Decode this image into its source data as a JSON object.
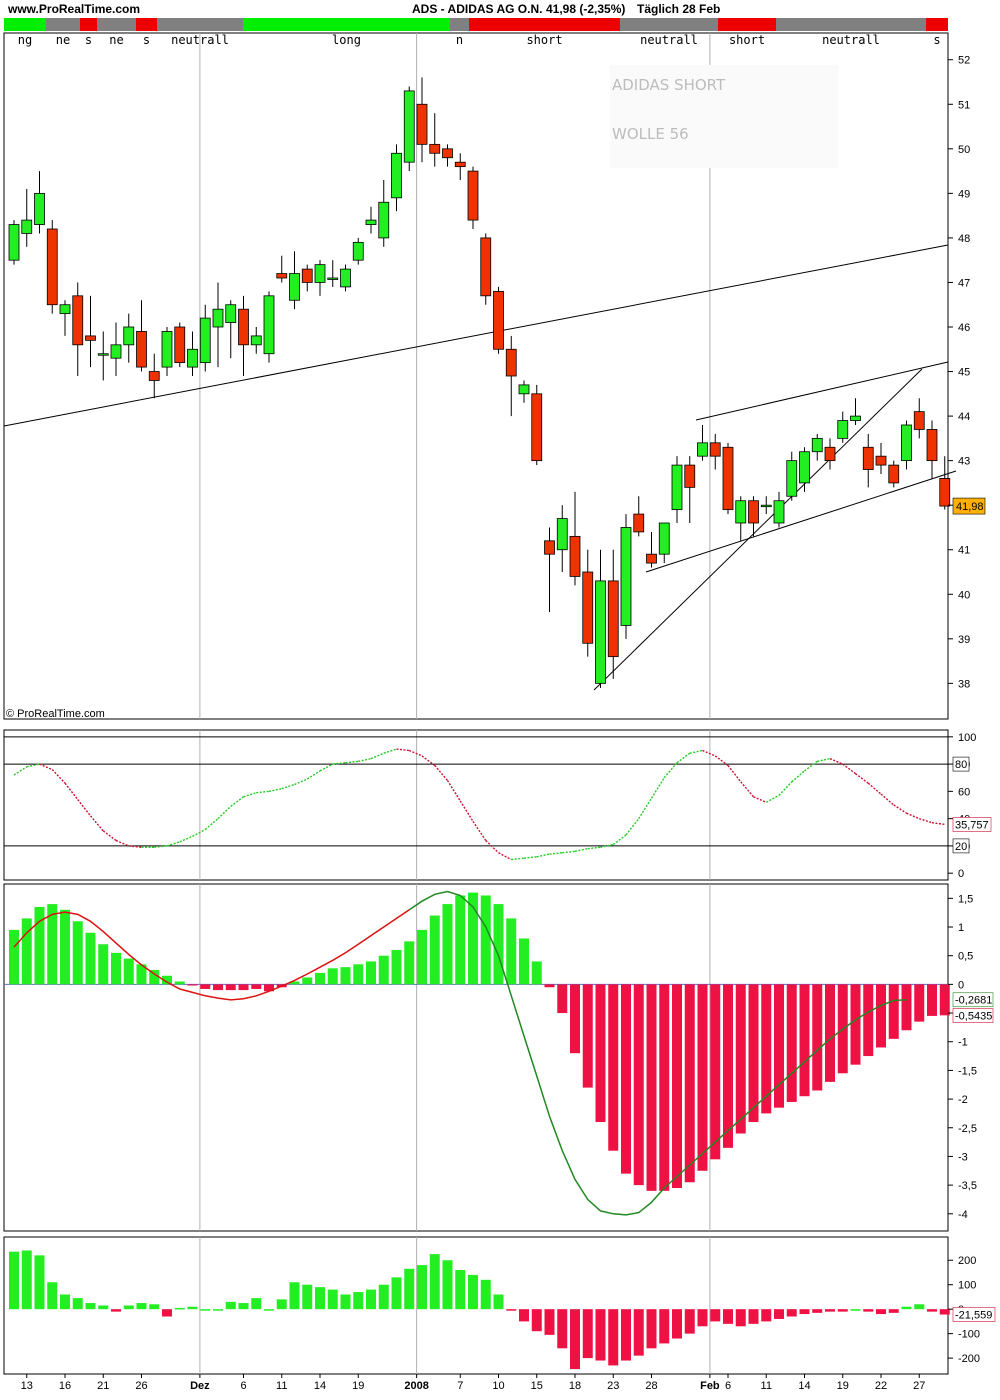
{
  "header": {
    "site": "www.ProRealTime.com",
    "title": "ADS - ADIDAS AG O.N.",
    "quote": "41,98 (-2,35%)",
    "period": "Täglich  28 Feb"
  },
  "signal_segments": [
    {
      "label": "ng",
      "color": "#00ee00"
    },
    {
      "label": "ne",
      "color": "#808080"
    },
    {
      "label": "s",
      "color": "#ee0000"
    },
    {
      "label": "ne",
      "color": "#808080"
    },
    {
      "label": "s",
      "color": "#ee0000"
    },
    {
      "label": "neutrall",
      "color": "#808080"
    },
    {
      "label": "long",
      "color": "#00ee00"
    },
    {
      "label": "n",
      "color": "#808080"
    },
    {
      "label": "short",
      "color": "#ee0000"
    },
    {
      "label": "neutrall",
      "color": "#808080"
    },
    {
      "label": "short",
      "color": "#ee0000"
    },
    {
      "label": "neutrall",
      "color": "#808080"
    },
    {
      "label": "s",
      "color": "#ee0000"
    }
  ],
  "copyright": "© ProRealTime.com",
  "annotations": [
    "ADIDAS SHORT",
    "WOLLE 56"
  ],
  "colors": {
    "up": "#22ee22",
    "down": "#ee3300",
    "hist_neg": "#ee1144",
    "price_tag": "#ffb000"
  },
  "chart_data": [
    {
      "type": "candlestick",
      "y_ticks": [
        "52",
        "51",
        "50",
        "49",
        "48",
        "47",
        "46",
        "45",
        "44",
        "43",
        "42",
        "41",
        "40",
        "39",
        "38"
      ],
      "ylim": [
        37.2,
        52.6
      ],
      "last_price_label": "41,98",
      "x_tick_labels": [
        "13",
        "16",
        "21",
        "26",
        "Dez",
        "6",
        "11",
        "14",
        "19",
        "2008",
        "7",
        "10",
        "15",
        "18",
        "23",
        "28",
        "Feb",
        "6",
        "11",
        "14",
        "19",
        "22",
        "27"
      ],
      "candles": [
        {
          "o": 47.5,
          "h": 48.4,
          "l": 47.4,
          "c": 48.3
        },
        {
          "o": 48.1,
          "h": 49.1,
          "l": 47.8,
          "c": 48.4
        },
        {
          "o": 48.3,
          "h": 49.5,
          "l": 48.1,
          "c": 49.0
        },
        {
          "o": 48.2,
          "h": 48.4,
          "l": 46.3,
          "c": 46.5
        },
        {
          "o": 46.3,
          "h": 46.6,
          "l": 45.8,
          "c": 46.5
        },
        {
          "o": 46.7,
          "h": 47.0,
          "l": 44.9,
          "c": 45.6
        },
        {
          "o": 45.8,
          "h": 46.7,
          "l": 45.1,
          "c": 45.7
        },
        {
          "o": 45.4,
          "h": 45.9,
          "l": 44.8,
          "c": 45.4
        },
        {
          "o": 45.3,
          "h": 46.1,
          "l": 44.9,
          "c": 45.6
        },
        {
          "o": 45.6,
          "h": 46.3,
          "l": 45.2,
          "c": 46.0
        },
        {
          "o": 45.9,
          "h": 46.6,
          "l": 45.0,
          "c": 45.1
        },
        {
          "o": 45.0,
          "h": 45.4,
          "l": 44.4,
          "c": 44.8
        },
        {
          "o": 45.1,
          "h": 46.0,
          "l": 44.9,
          "c": 45.9
        },
        {
          "o": 46.0,
          "h": 46.1,
          "l": 45.1,
          "c": 45.2
        },
        {
          "o": 45.1,
          "h": 45.9,
          "l": 44.9,
          "c": 45.5
        },
        {
          "o": 45.2,
          "h": 46.5,
          "l": 45.0,
          "c": 46.2
        },
        {
          "o": 46.0,
          "h": 47.0,
          "l": 45.1,
          "c": 46.4
        },
        {
          "o": 46.1,
          "h": 46.6,
          "l": 45.3,
          "c": 46.5
        },
        {
          "o": 46.4,
          "h": 46.7,
          "l": 44.9,
          "c": 45.6
        },
        {
          "o": 45.6,
          "h": 46.0,
          "l": 45.4,
          "c": 45.8
        },
        {
          "o": 45.4,
          "h": 46.8,
          "l": 45.2,
          "c": 46.7
        },
        {
          "o": 47.2,
          "h": 47.6,
          "l": 47.0,
          "c": 47.1
        },
        {
          "o": 46.6,
          "h": 47.7,
          "l": 46.4,
          "c": 47.2
        },
        {
          "o": 47.3,
          "h": 47.4,
          "l": 46.8,
          "c": 47.0
        },
        {
          "o": 47.0,
          "h": 47.5,
          "l": 46.7,
          "c": 47.4
        },
        {
          "o": 47.1,
          "h": 47.5,
          "l": 46.9,
          "c": 47.1
        },
        {
          "o": 46.9,
          "h": 47.4,
          "l": 46.8,
          "c": 47.3
        },
        {
          "o": 47.5,
          "h": 48.0,
          "l": 47.4,
          "c": 47.9
        },
        {
          "o": 48.3,
          "h": 48.7,
          "l": 48.1,
          "c": 48.4
        },
        {
          "o": 48.0,
          "h": 49.3,
          "l": 47.8,
          "c": 48.8
        },
        {
          "o": 48.9,
          "h": 50.1,
          "l": 48.6,
          "c": 49.9
        },
        {
          "o": 49.7,
          "h": 51.4,
          "l": 49.5,
          "c": 51.3
        },
        {
          "o": 51.0,
          "h": 51.6,
          "l": 49.7,
          "c": 50.1
        },
        {
          "o": 50.1,
          "h": 50.8,
          "l": 49.6,
          "c": 49.9
        },
        {
          "o": 50.0,
          "h": 50.1,
          "l": 49.6,
          "c": 49.8
        },
        {
          "o": 49.7,
          "h": 49.9,
          "l": 49.3,
          "c": 49.6
        },
        {
          "o": 49.5,
          "h": 49.6,
          "l": 48.2,
          "c": 48.4
        },
        {
          "o": 48.0,
          "h": 48.1,
          "l": 46.5,
          "c": 46.7
        },
        {
          "o": 46.8,
          "h": 46.9,
          "l": 45.4,
          "c": 45.5
        },
        {
          "o": 45.5,
          "h": 45.8,
          "l": 44.0,
          "c": 44.9
        },
        {
          "o": 44.5,
          "h": 44.8,
          "l": 44.3,
          "c": 44.7
        },
        {
          "o": 44.5,
          "h": 44.7,
          "l": 42.9,
          "c": 43.0
        },
        {
          "o": 41.2,
          "h": 41.5,
          "l": 39.6,
          "c": 40.9
        },
        {
          "o": 41.0,
          "h": 42.0,
          "l": 40.5,
          "c": 41.7
        },
        {
          "o": 41.3,
          "h": 42.3,
          "l": 40.2,
          "c": 40.4
        },
        {
          "o": 40.5,
          "h": 41.0,
          "l": 38.6,
          "c": 38.9
        },
        {
          "o": 38.0,
          "h": 41.0,
          "l": 37.9,
          "c": 40.3
        },
        {
          "o": 40.3,
          "h": 41.0,
          "l": 38.1,
          "c": 38.6
        },
        {
          "o": 39.3,
          "h": 41.8,
          "l": 39.0,
          "c": 41.5
        },
        {
          "o": 41.8,
          "h": 42.2,
          "l": 41.3,
          "c": 41.4
        },
        {
          "o": 40.9,
          "h": 41.4,
          "l": 40.6,
          "c": 40.7
        },
        {
          "o": 40.9,
          "h": 41.6,
          "l": 40.7,
          "c": 41.6
        },
        {
          "o": 41.9,
          "h": 43.1,
          "l": 41.6,
          "c": 42.9
        },
        {
          "o": 42.9,
          "h": 43.1,
          "l": 41.6,
          "c": 42.4
        },
        {
          "o": 43.1,
          "h": 43.8,
          "l": 43.0,
          "c": 43.4
        },
        {
          "o": 43.4,
          "h": 43.6,
          "l": 42.8,
          "c": 43.1
        },
        {
          "o": 43.3,
          "h": 43.4,
          "l": 41.8,
          "c": 41.9
        },
        {
          "o": 41.6,
          "h": 42.2,
          "l": 41.2,
          "c": 42.1
        },
        {
          "o": 42.1,
          "h": 42.2,
          "l": 41.3,
          "c": 41.6
        },
        {
          "o": 42.0,
          "h": 42.2,
          "l": 41.8,
          "c": 42.0
        },
        {
          "o": 41.6,
          "h": 42.3,
          "l": 41.5,
          "c": 42.1
        },
        {
          "o": 42.2,
          "h": 43.2,
          "l": 42.1,
          "c": 43.0
        },
        {
          "o": 42.5,
          "h": 43.3,
          "l": 42.3,
          "c": 43.2
        },
        {
          "o": 43.2,
          "h": 43.6,
          "l": 43.0,
          "c": 43.5
        },
        {
          "o": 43.3,
          "h": 43.5,
          "l": 42.8,
          "c": 43.0
        },
        {
          "o": 43.5,
          "h": 44.1,
          "l": 43.4,
          "c": 43.9
        },
        {
          "o": 43.9,
          "h": 44.4,
          "l": 43.8,
          "c": 44.0
        },
        {
          "o": 43.3,
          "h": 43.6,
          "l": 42.4,
          "c": 42.8
        },
        {
          "o": 43.1,
          "h": 43.4,
          "l": 42.7,
          "c": 42.9
        },
        {
          "o": 42.9,
          "h": 43.0,
          "l": 42.4,
          "c": 42.5
        },
        {
          "o": 43.0,
          "h": 43.9,
          "l": 42.8,
          "c": 43.8
        },
        {
          "o": 44.1,
          "h": 44.4,
          "l": 43.5,
          "c": 43.7
        },
        {
          "o": 43.7,
          "h": 43.9,
          "l": 42.6,
          "c": 43.0
        },
        {
          "o": 42.6,
          "h": 43.1,
          "l": 41.9,
          "c": 41.98
        }
      ]
    },
    {
      "type": "line",
      "name": "stochastic",
      "y_ticks": [
        "100",
        "80",
        "60",
        "40",
        "20",
        "0"
      ],
      "ylim": [
        -5,
        105
      ],
      "last_value_label": "35,757",
      "box_labels": [
        "80",
        "20"
      ],
      "values": [
        72,
        78,
        80,
        76,
        66,
        54,
        42,
        31,
        24,
        20,
        19,
        19,
        20,
        23,
        27,
        32,
        40,
        49,
        56,
        59,
        60,
        62,
        65,
        69,
        75,
        80,
        81,
        82,
        84,
        88,
        91,
        90,
        86,
        79,
        68,
        53,
        38,
        24,
        15,
        10,
        11,
        12,
        14,
        15,
        16,
        18,
        19,
        21,
        28,
        40,
        55,
        70,
        81,
        88,
        90,
        86,
        79,
        67,
        56,
        52,
        57,
        67,
        75,
        82,
        84,
        80,
        73,
        66,
        58,
        50,
        44,
        40,
        37,
        35.8
      ]
    },
    {
      "type": "bar",
      "name": "macd",
      "y_ticks": [
        "1,5",
        "1",
        "0,5",
        "0",
        "-0,5",
        "-1",
        "-1,5",
        "-2",
        "-2,5",
        "-3",
        "-3,5",
        "-4"
      ],
      "ylim": [
        -4.3,
        1.75
      ],
      "signal_label": "-0,2681",
      "hist_label": "-0,5435",
      "histogram": [
        0.95,
        1.15,
        1.35,
        1.4,
        1.3,
        1.1,
        0.9,
        0.7,
        0.55,
        0.45,
        0.35,
        0.25,
        0.15,
        0.05,
        -0.02,
        -0.08,
        -0.1,
        -0.1,
        -0.1,
        -0.08,
        -0.12,
        -0.05,
        0.05,
        0.12,
        0.2,
        0.28,
        0.3,
        0.35,
        0.4,
        0.5,
        0.6,
        0.75,
        0.95,
        1.2,
        1.4,
        1.55,
        1.6,
        1.55,
        1.4,
        1.15,
        0.8,
        0.4,
        -0.05,
        -0.5,
        -1.2,
        -1.8,
        -2.4,
        -2.9,
        -3.3,
        -3.5,
        -3.6,
        -3.6,
        -3.55,
        -3.45,
        -3.25,
        -3.05,
        -2.85,
        -2.6,
        -2.4,
        -2.25,
        -2.15,
        -2.05,
        -1.95,
        -1.85,
        -1.7,
        -1.55,
        -1.4,
        -1.25,
        -1.1,
        -0.95,
        -0.8,
        -0.65,
        -0.55,
        -0.54
      ],
      "line": [
        0.65,
        0.9,
        1.1,
        1.22,
        1.26,
        1.22,
        1.1,
        0.92,
        0.72,
        0.52,
        0.34,
        0.18,
        0.04,
        -0.08,
        -0.14,
        -0.2,
        -0.24,
        -0.27,
        -0.25,
        -0.2,
        -0.12,
        -0.03,
        0.07,
        0.18,
        0.3,
        0.42,
        0.55,
        0.7,
        0.85,
        1.0,
        1.15,
        1.3,
        1.45,
        1.57,
        1.62,
        1.55,
        1.35,
        1.0,
        0.5,
        -0.2,
        -0.9,
        -1.6,
        -2.3,
        -2.9,
        -3.4,
        -3.75,
        -3.95,
        -4.0,
        -4.02,
        -3.98,
        -3.8,
        -3.55,
        -3.35,
        -3.15,
        -2.95,
        -2.75,
        -2.55,
        -2.35,
        -2.15,
        -1.95,
        -1.75,
        -1.55,
        -1.35,
        -1.15,
        -0.95,
        -0.78,
        -0.62,
        -0.48,
        -0.37,
        -0.28,
        -0.27
      ],
      "line_split": 31
    },
    {
      "type": "bar",
      "name": "momentum",
      "y_ticks": [
        "200",
        "100",
        "0",
        "-100",
        "-200"
      ],
      "ylim": [
        -265,
        295
      ],
      "last_value_label": "-21,559",
      "values": [
        235,
        240,
        220,
        110,
        60,
        45,
        25,
        15,
        -10,
        15,
        25,
        20,
        -30,
        5,
        10,
        0,
        0,
        30,
        25,
        45,
        0,
        40,
        110,
        100,
        90,
        80,
        60,
        70,
        80,
        100,
        130,
        165,
        180,
        225,
        200,
        160,
        140,
        120,
        60,
        -5,
        -50,
        -90,
        -105,
        -160,
        -245,
        -200,
        -210,
        -230,
        -210,
        -190,
        -160,
        -140,
        -120,
        -100,
        -70,
        -50,
        -60,
        -70,
        -60,
        -50,
        -40,
        -30,
        -20,
        -15,
        -10,
        -10,
        0,
        -10,
        -20,
        -15,
        10,
        20,
        -10,
        -22
      ]
    }
  ]
}
